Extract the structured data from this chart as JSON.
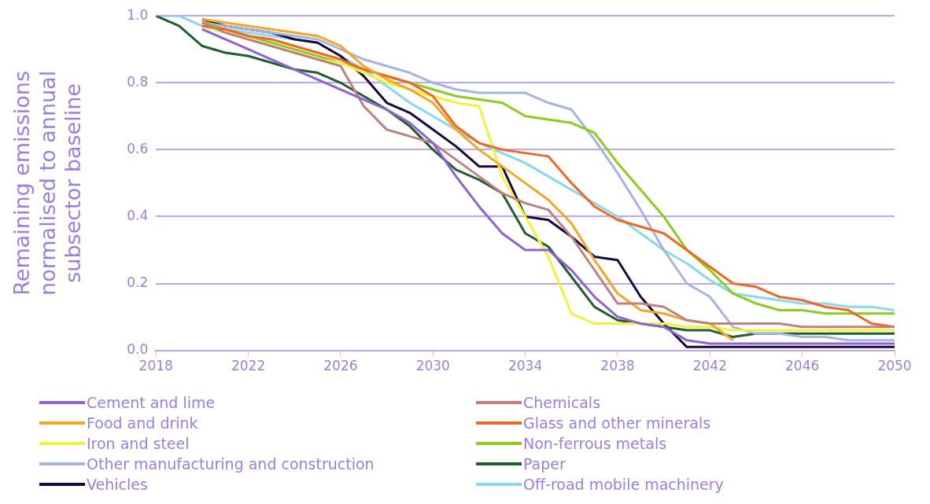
{
  "chart_data": {
    "type": "line",
    "ylabel": "Remaining emissions normalised to annual subsector baseline",
    "x": [
      2018,
      2019,
      2020,
      2021,
      2022,
      2023,
      2024,
      2025,
      2026,
      2027,
      2028,
      2029,
      2030,
      2031,
      2032,
      2033,
      2034,
      2035,
      2036,
      2037,
      2038,
      2039,
      2040,
      2041,
      2042,
      2043,
      2044,
      2045,
      2046,
      2047,
      2048,
      2049,
      2050
    ],
    "xlim": [
      2018,
      2050
    ],
    "xticks": [
      2018,
      2022,
      2026,
      2030,
      2034,
      2038,
      2042,
      2046,
      2050
    ],
    "ylim": [
      0,
      1
    ],
    "yticks": [
      {
        "value": 0,
        "label": "0.0"
      },
      0.2,
      0.4,
      0.6,
      0.8,
      {
        "value": 1,
        "label": "1.0"
      }
    ],
    "grid": "y",
    "legend": "bottom",
    "marker": "none",
    "line_style": "solid",
    "series": [
      {
        "name": "Cement and lime",
        "color": "#8e63d6",
        "values": [
          null,
          null,
          0.96,
          0.93,
          0.9,
          0.87,
          0.84,
          0.81,
          0.78,
          0.75,
          0.72,
          0.68,
          0.62,
          0.52,
          0.43,
          0.35,
          0.3,
          0.3,
          0.24,
          0.16,
          0.1,
          0.08,
          0.07,
          0.03,
          0.02,
          0.02,
          0.02,
          0.02,
          0.02,
          0.02,
          0.02,
          0.02,
          0.02
        ]
      },
      {
        "name": "Chemicals",
        "color": "#c08080",
        "values": [
          null,
          null,
          0.98,
          0.95,
          0.93,
          0.91,
          0.89,
          0.87,
          0.85,
          0.73,
          0.66,
          0.64,
          0.62,
          0.57,
          0.52,
          0.47,
          0.44,
          0.42,
          0.34,
          0.24,
          0.14,
          0.14,
          0.13,
          0.09,
          0.08,
          0.08,
          0.08,
          0.08,
          0.07,
          0.07,
          0.07,
          0.07,
          0.07
        ]
      },
      {
        "name": "Food and drink",
        "color": "#f5a623",
        "values": [
          null,
          null,
          0.99,
          0.98,
          0.97,
          0.96,
          0.95,
          0.94,
          0.91,
          0.85,
          0.81,
          0.78,
          0.74,
          0.66,
          0.6,
          0.55,
          0.5,
          0.45,
          0.38,
          0.27,
          0.17,
          0.12,
          0.11,
          0.09,
          0.08,
          0.03,
          null,
          null,
          null,
          null,
          null,
          null,
          null
        ]
      },
      {
        "name": "Glass and other minerals",
        "color": "#f26522",
        "values": [
          null,
          null,
          0.97,
          0.96,
          0.94,
          0.93,
          0.91,
          0.89,
          0.87,
          0.84,
          0.82,
          0.8,
          0.76,
          0.67,
          0.62,
          0.6,
          0.59,
          0.58,
          0.5,
          0.43,
          0.39,
          0.37,
          0.35,
          0.3,
          0.25,
          0.2,
          0.19,
          0.16,
          0.15,
          0.13,
          0.12,
          0.08,
          0.07
        ]
      },
      {
        "name": "Iron and steel",
        "color": "#f2f23a",
        "values": [
          null,
          null,
          0.97,
          0.95,
          0.93,
          0.91,
          0.89,
          0.87,
          0.86,
          0.83,
          0.8,
          0.78,
          0.76,
          0.74,
          0.73,
          0.52,
          0.4,
          0.28,
          0.11,
          0.08,
          0.08,
          0.08,
          0.08,
          0.07,
          0.07,
          0.06,
          0.06,
          0.06,
          0.06,
          0.06,
          0.06,
          0.06,
          0.06
        ]
      },
      {
        "name": "Non-ferrous metals",
        "color": "#8ccc1a",
        "values": [
          null,
          null,
          0.98,
          0.96,
          0.94,
          0.92,
          0.9,
          0.88,
          0.86,
          0.84,
          0.82,
          0.8,
          0.78,
          0.76,
          0.75,
          0.74,
          0.7,
          0.69,
          0.68,
          0.65,
          0.56,
          0.48,
          0.4,
          0.3,
          0.24,
          0.17,
          0.14,
          0.12,
          0.12,
          0.11,
          0.11,
          0.11,
          0.11
        ]
      },
      {
        "name": "Other manufacturing and construction",
        "color": "#a6b4e0",
        "values": [
          null,
          null,
          0.98,
          0.97,
          0.96,
          0.95,
          0.94,
          0.93,
          0.9,
          0.87,
          0.85,
          0.83,
          0.8,
          0.78,
          0.77,
          0.77,
          0.77,
          0.74,
          0.72,
          0.63,
          0.53,
          0.42,
          0.3,
          0.2,
          0.16,
          0.07,
          0.05,
          0.05,
          0.04,
          0.04,
          0.03,
          0.03,
          0.03
        ]
      },
      {
        "name": "Paper",
        "color": "#1f5e2e",
        "values": [
          1,
          0.97,
          0.91,
          0.89,
          0.88,
          0.86,
          0.84,
          0.83,
          0.8,
          0.76,
          0.72,
          0.67,
          0.6,
          0.54,
          0.51,
          0.47,
          0.35,
          0.31,
          0.22,
          0.13,
          0.09,
          0.08,
          0.07,
          0.06,
          0.06,
          0.04,
          0.05,
          0.05,
          0.05,
          0.05,
          0.05,
          0.05,
          0.05
        ]
      },
      {
        "name": "Vehicles",
        "color": "#1a0a3a",
        "values": [
          null,
          null,
          0.99,
          0.97,
          0.96,
          0.95,
          0.93,
          0.92,
          0.88,
          0.82,
          0.74,
          0.71,
          0.66,
          0.61,
          0.55,
          0.55,
          0.4,
          0.39,
          0.34,
          0.28,
          0.27,
          0.16,
          0.08,
          0.01,
          0.01,
          0.01,
          0.01,
          0.01,
          0.01,
          0.01,
          0.01,
          0.01,
          0.01
        ]
      },
      {
        "name": "Off-road mobile machinery",
        "color": "#87d8f0",
        "values": [
          1,
          1,
          0.97,
          0.96,
          0.95,
          0.94,
          0.93,
          0.92,
          0.88,
          0.84,
          0.79,
          0.74,
          0.7,
          0.66,
          0.62,
          0.59,
          0.56,
          0.52,
          0.48,
          0.44,
          0.4,
          0.35,
          0.3,
          0.26,
          0.21,
          0.17,
          0.16,
          0.15,
          0.14,
          0.14,
          0.13,
          0.13,
          0.12
        ]
      }
    ]
  }
}
